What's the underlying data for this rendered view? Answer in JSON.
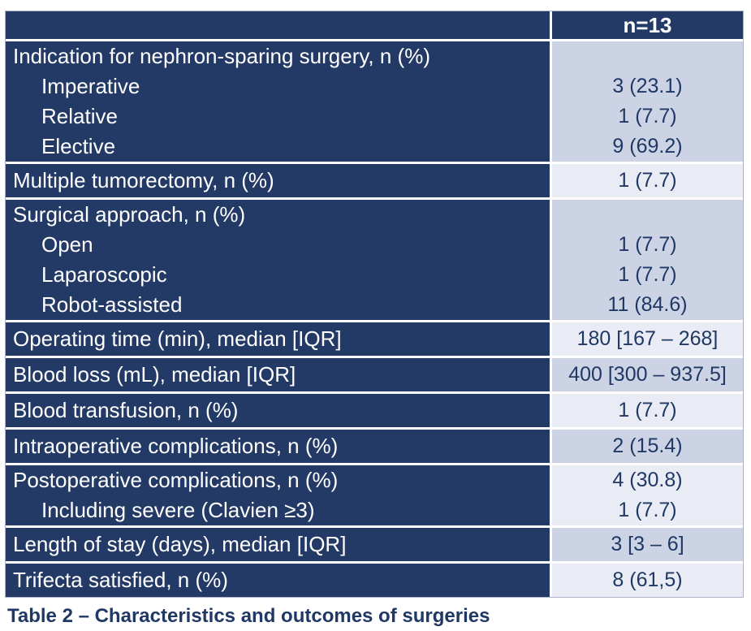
{
  "colors": {
    "navy": "#243a66",
    "lavender_dark": "#ccd3e5",
    "lavender_light": "#e9ecf5",
    "text_dark": "#1f3864",
    "border": "#a9b1c7"
  },
  "table": {
    "header": {
      "label": "",
      "count_label": "n=13"
    },
    "rows": [
      {
        "type": "group",
        "shade": "dark",
        "lines": [
          {
            "label": "Indication for nephron-sparing surgery, n (%)",
            "indent": false,
            "value": ""
          },
          {
            "label": "Imperative",
            "indent": true,
            "value": "3 (23.1)"
          },
          {
            "label": "Relative",
            "indent": true,
            "value": "1 (7.7)"
          },
          {
            "label": "Elective",
            "indent": true,
            "value": "9 (69.2)"
          }
        ]
      },
      {
        "type": "single",
        "shade": "light",
        "label": "Multiple tumorectomy, n (%)",
        "value": "1 (7.7)"
      },
      {
        "type": "group",
        "shade": "dark",
        "lines": [
          {
            "label": "Surgical approach, n (%)",
            "indent": false,
            "value": ""
          },
          {
            "label": "Open",
            "indent": true,
            "value": "1 (7.7)"
          },
          {
            "label": "Laparoscopic",
            "indent": true,
            "value": "1 (7.7)"
          },
          {
            "label": "Robot-assisted",
            "indent": true,
            "value": "11 (84.6)"
          }
        ]
      },
      {
        "type": "single",
        "shade": "light",
        "label": "Operating time (min), median [IQR]",
        "value": "180 [167 – 268]"
      },
      {
        "type": "single",
        "shade": "dark",
        "label": "Blood loss (mL), median [IQR]",
        "value": "400 [300 – 937.5]"
      },
      {
        "type": "single",
        "shade": "light",
        "label": "Blood transfusion, n (%)",
        "value": "1 (7.7)"
      },
      {
        "type": "single",
        "shade": "dark",
        "label": "Intraoperative complications, n (%)",
        "value": "2 (15.4)"
      },
      {
        "type": "group",
        "shade": "light",
        "lines": [
          {
            "label": "Postoperative complications, n (%)",
            "indent": false,
            "value": "4 (30.8)"
          },
          {
            "label": "Including severe (Clavien ≥3)",
            "indent": true,
            "value": "1 (7.7)"
          }
        ]
      },
      {
        "type": "single",
        "shade": "dark",
        "label": "Length of stay (days), median [IQR]",
        "value": "3 [3 – 6]"
      },
      {
        "type": "single",
        "shade": "light",
        "label": "Trifecta satisfied, n (%)",
        "value": "8 (61,5)"
      }
    ],
    "caption": "Table 2 – Characteristics and outcomes of surgeries"
  }
}
